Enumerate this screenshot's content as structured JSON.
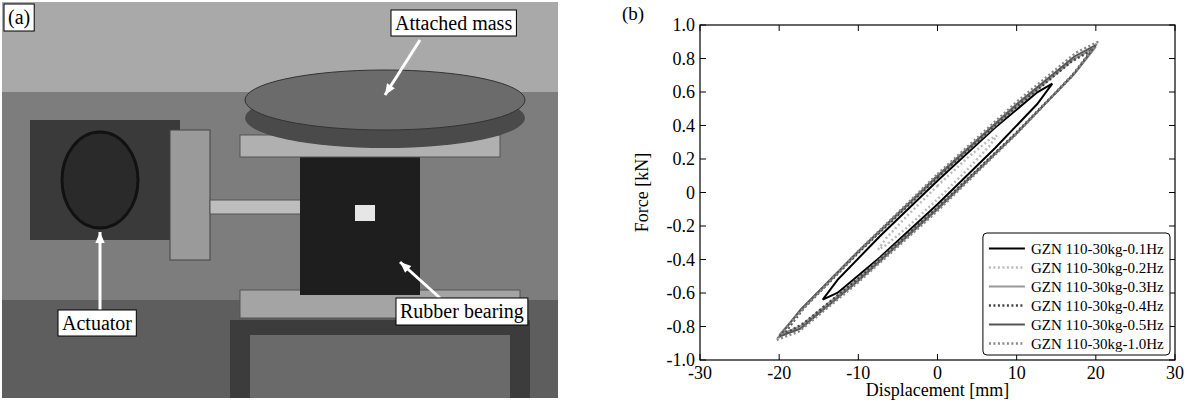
{
  "photo": {
    "panel_label": "(a)",
    "annotations": [
      "Attached mass",
      "Actuator",
      "Rubber bearing"
    ]
  },
  "chart_data": {
    "type": "line",
    "panel_label": "(b)",
    "x_label": "Displacement [mm]",
    "y_label": "Force [kN]",
    "xlim": [
      -30,
      30
    ],
    "xticks": [
      -30,
      -20,
      -10,
      0,
      10,
      20,
      30
    ],
    "ylim": [
      -1,
      1
    ],
    "yticks": [
      {
        "value": -1,
        "label": "-1.0"
      },
      -0.8,
      -0.6,
      -0.4,
      -0.2,
      0,
      0.2,
      0.4,
      0.6,
      0.8,
      {
        "value": 1,
        "label": "1.0"
      }
    ],
    "legend": "lower right",
    "series": [
      {
        "name": "GZN 110-30kg-0.1Hz",
        "color": "#000000",
        "line_style": "solid",
        "x": [
          0,
          7.25,
          12.6,
          14.5,
          12.6,
          7.25,
          0,
          -7.25,
          -12.6,
          -14.5,
          -12.6,
          -7.25,
          0
        ],
        "values": [
          0.07,
          0.386,
          0.598,
          0.65,
          0.528,
          0.264,
          -0.07,
          -0.386,
          -0.598,
          -0.64,
          -0.52,
          -0.26,
          0.07
        ]
      },
      {
        "name": "GZN 110-30kg-0.2Hz",
        "color": "#bbbbbb",
        "line_style": "dotted",
        "x": [
          0,
          3.75,
          6.5,
          7.5,
          6.5,
          3.75,
          0,
          -3.75,
          -6.5,
          -7.5,
          -6.5,
          -3.75,
          0
        ],
        "values": [
          0.04,
          0.205,
          0.314,
          0.34,
          0.274,
          0.135,
          -0.04,
          -0.205,
          -0.314,
          -0.34,
          -0.274,
          -0.135,
          0.04
        ]
      },
      {
        "name": "GZN 110-30kg-0.3Hz",
        "color": "#999999",
        "line_style": "solid",
        "x": [
          0,
          10,
          17.3,
          20,
          17.3,
          10,
          0,
          -10,
          -17.3,
          -20,
          -17.3,
          -10,
          0
        ],
        "values": [
          0.09,
          0.513,
          0.798,
          0.87,
          0.708,
          0.357,
          -0.09,
          -0.513,
          -0.798,
          -0.85,
          -0.708,
          -0.357,
          0.09
        ]
      },
      {
        "name": "GZN 110-30kg-0.4Hz",
        "color": "#444444",
        "line_style": "dotted",
        "x": [
          0,
          9.75,
          16.9,
          19.5,
          16.9,
          9.75,
          0,
          -9.75,
          -16.9,
          -19.5,
          -16.9,
          -9.75,
          0
        ],
        "values": [
          0.09,
          0.503,
          0.781,
          0.85,
          0.691,
          0.347,
          -0.09,
          -0.503,
          -0.781,
          -0.85,
          -0.691,
          -0.347,
          0.09
        ]
      },
      {
        "name": "GZN 110-30kg-0.5Hz",
        "color": "#555555",
        "line_style": "solid",
        "x": [
          0,
          10,
          17.3,
          20,
          17.3,
          10,
          0,
          -10,
          -17.3,
          -20,
          -17.3,
          -10,
          0
        ],
        "values": [
          0.1,
          0.527,
          0.812,
          0.88,
          0.712,
          0.353,
          -0.1,
          -0.527,
          -0.812,
          -0.86,
          -0.7,
          -0.35,
          0.1
        ]
      },
      {
        "name": "GZN 110-30kg-1.0Hz",
        "color": "#888888",
        "line_style": "dotted",
        "x": [
          0,
          10.1,
          17.5,
          20.3,
          17.5,
          10.1,
          0,
          -10.1,
          -17.5,
          -20.3,
          -17.5,
          -10.1,
          0
        ],
        "values": [
          0.11,
          0.545,
          0.835,
          0.9,
          0.725,
          0.355,
          -0.11,
          -0.54,
          -0.83,
          -0.88,
          -0.72,
          -0.355,
          0.11
        ]
      }
    ]
  }
}
